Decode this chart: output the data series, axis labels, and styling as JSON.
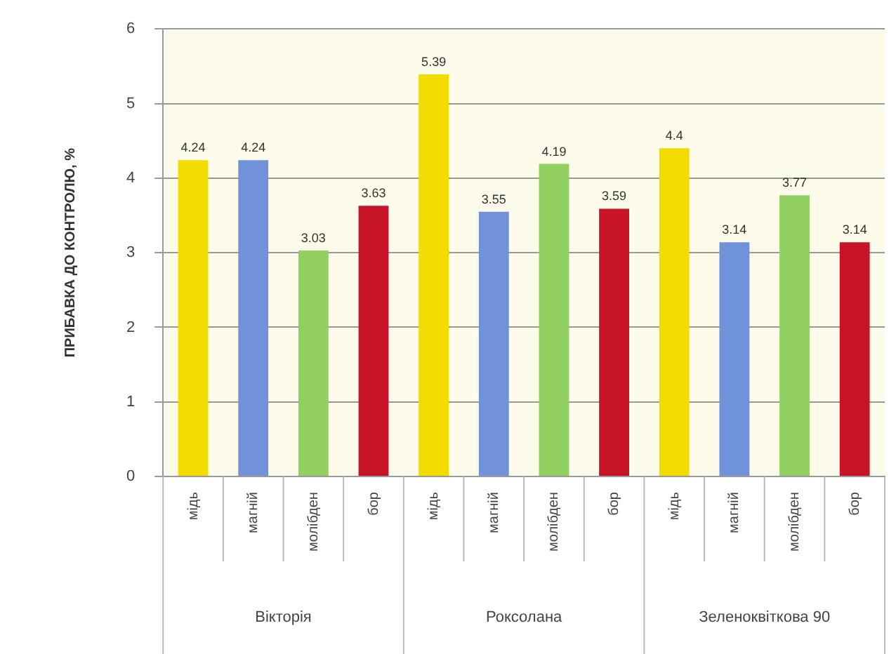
{
  "chart_data": {
    "type": "bar",
    "ylabel": "ПРИБАВКА ДО КОНТРОЛЮ, %",
    "categories": [
      "мідь",
      "магній",
      "молібден",
      "бор",
      "мідь",
      "магній",
      "молібден",
      "бор",
      "мідь",
      "магній",
      "молібден",
      "бор"
    ],
    "values": [
      4.24,
      4.24,
      3.03,
      3.63,
      5.39,
      3.55,
      4.19,
      3.59,
      4.4,
      3.14,
      3.77,
      3.14
    ],
    "colors": [
      "#f2dc00",
      "#7092d8",
      "#8fd060",
      "#c81428",
      "#f2dc00",
      "#7092d8",
      "#8fd060",
      "#c81428",
      "#f2dc00",
      "#7092d8",
      "#8fd060",
      "#c81428"
    ],
    "ylim": [
      0,
      6
    ],
    "yticks": [
      0,
      1,
      2,
      3,
      4,
      5,
      6
    ],
    "grid": "y",
    "data_labels": true,
    "legend": false,
    "annotations": [
      "Вікторія",
      "Роксолана",
      "Зеленоквіткова 90"
    ]
  }
}
